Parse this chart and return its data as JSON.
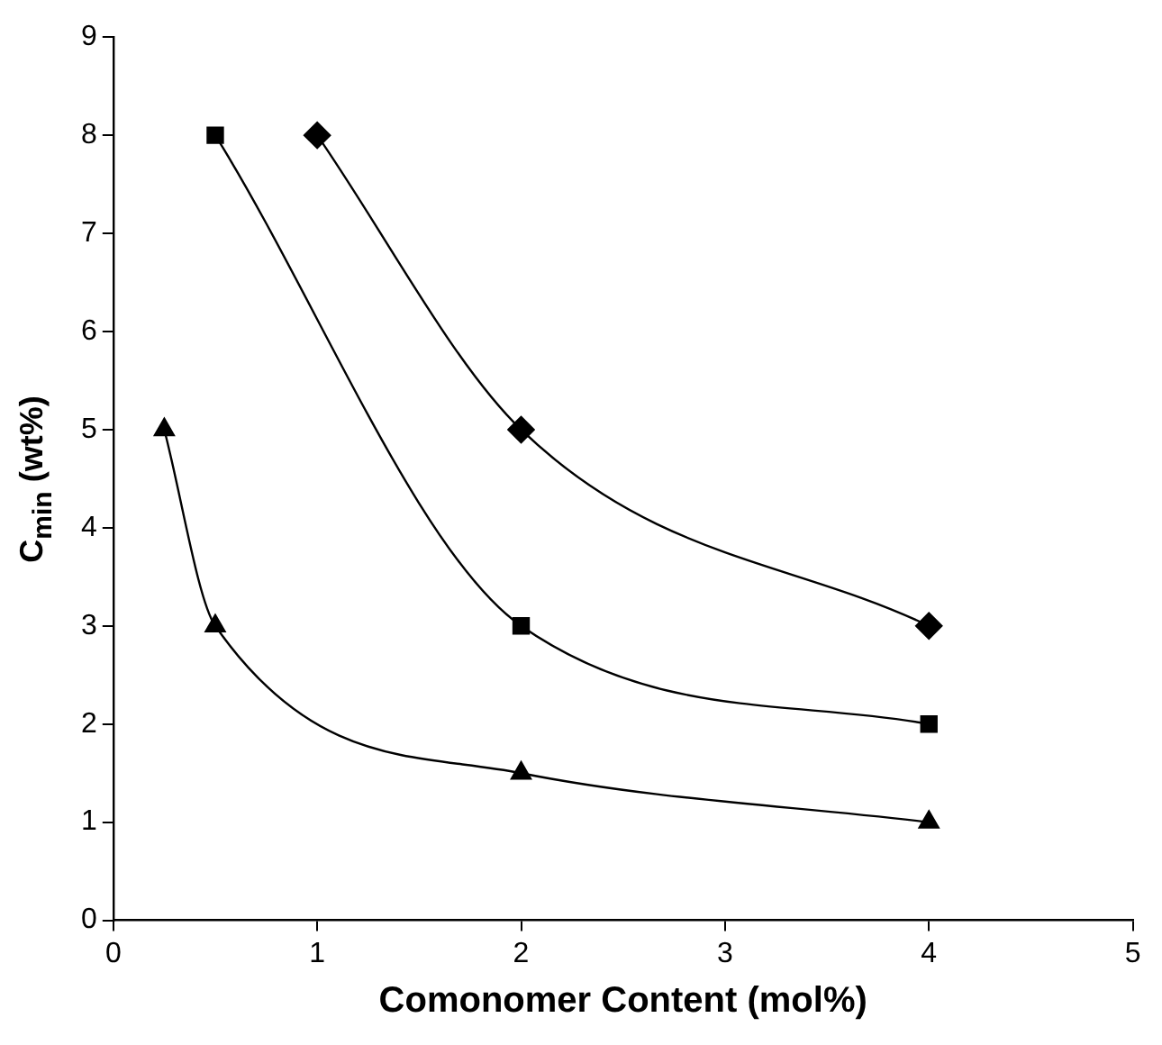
{
  "chart_data": {
    "type": "line",
    "xlabel": "Comonomer Content (mol%)",
    "ylabel": "C$_{min}$ (wt%)",
    "xlim": [
      0,
      5
    ],
    "xticks": [
      0,
      1,
      2,
      3,
      4,
      5
    ],
    "ylim": [
      0,
      9
    ],
    "yticks": [
      0,
      1,
      2,
      3,
      4,
      5,
      6,
      7,
      8,
      9
    ],
    "grid": false,
    "legend": false,
    "series": [
      {
        "color": "#000000",
        "marker": "diamond",
        "x": [
          1,
          2,
          4
        ],
        "values": [
          8,
          5,
          3
        ]
      },
      {
        "color": "#000000",
        "marker": "square",
        "x": [
          0.5,
          2,
          4
        ],
        "values": [
          8,
          3,
          2
        ]
      },
      {
        "color": "#000000",
        "marker": "triangle",
        "x": [
          0.25,
          0.5,
          2,
          4
        ],
        "values": [
          5,
          3,
          1.5,
          1
        ]
      }
    ]
  }
}
